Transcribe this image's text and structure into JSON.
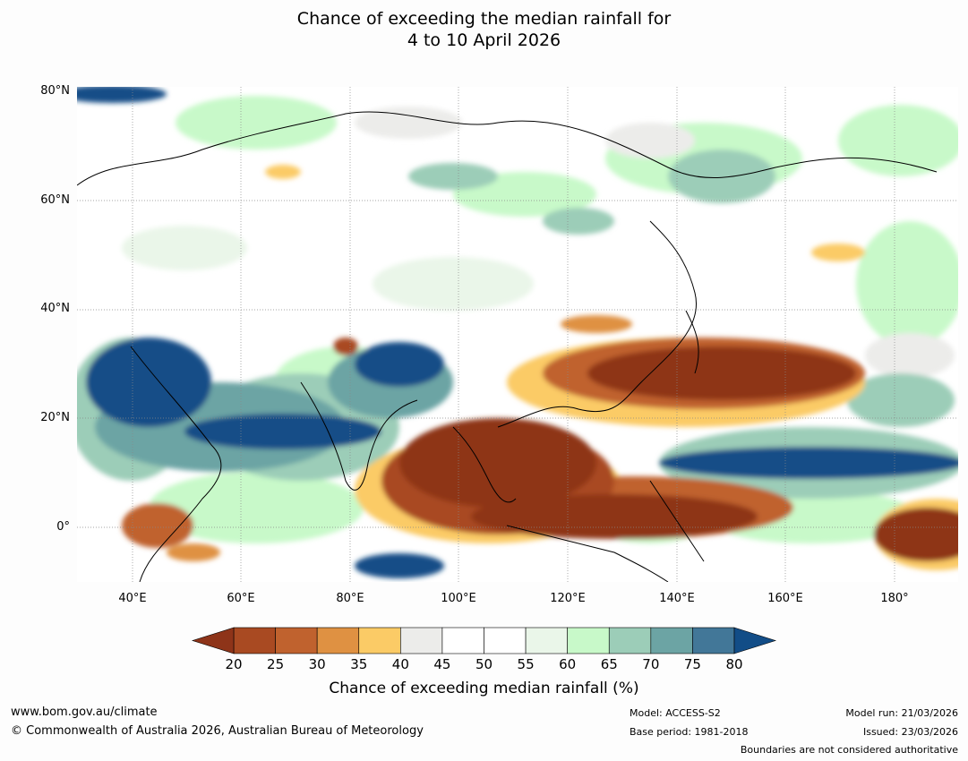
{
  "title_line1": "Chance of exceeding the median rainfall for",
  "title_line2": "4 to 10 April 2026",
  "lat_labels": [
    "80°N",
    "60°N",
    "40°N",
    "20°N",
    "0°"
  ],
  "lon_labels": [
    "40°E",
    "60°E",
    "80°E",
    "100°E",
    "120°E",
    "140°E",
    "160°E",
    "180°"
  ],
  "colorbar": {
    "ticks": [
      "20",
      "25",
      "30",
      "35",
      "40",
      "45",
      "50",
      "55",
      "60",
      "65",
      "70",
      "75",
      "80"
    ],
    "colors": [
      "#a94a22",
      "#c0622e",
      "#df9142",
      "#fbcb66",
      "#ececea",
      "#ffffff",
      "#ffffff",
      "#eaf6e9",
      "#c8f9c9",
      "#9ccdb8",
      "#6ca4a4",
      "#427798"
    ],
    "under_color": "#8e3419",
    "over_color": "#124d87",
    "label": "Chance of exceeding median rainfall (%)"
  },
  "footer": {
    "website": "www.bom.gov.au/climate",
    "copyright": "© Commonwealth of Australia 2026, Australian Bureau of Meteorology",
    "model": "Model: ACCESS-S2",
    "base_period": "Base period: 1981-2018",
    "model_run": "Model run: 21/03/2026",
    "issued": "Issued: 23/03/2026",
    "boundaries": "Boundaries are not considered authoritative"
  }
}
